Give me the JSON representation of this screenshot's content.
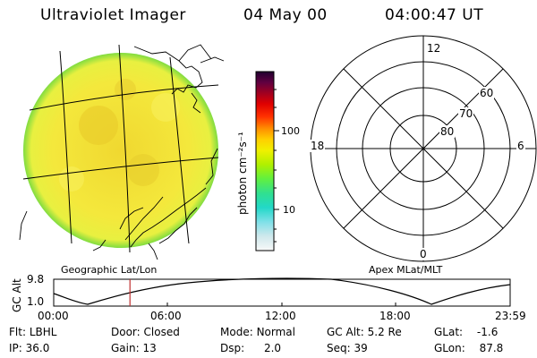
{
  "header": {
    "title": "Ultraviolet Imager",
    "date": "04 May 00",
    "time": "04:00:47 UT"
  },
  "left_panel": {
    "label": "Geographic Lat/Lon"
  },
  "right_panel": {
    "label": "Apex MLat/MLT",
    "mlt_labels": {
      "top": "12",
      "bottom": "0",
      "left": "18",
      "right": "6"
    },
    "lat_rings": [
      "60",
      "70",
      "80"
    ]
  },
  "colorbar": {
    "unit": "photon cm⁻²s⁻¹",
    "ticks": [
      {
        "label": "100",
        "value": 100
      },
      {
        "label": "10",
        "value": 10
      }
    ],
    "colors": [
      "#f8f8f8",
      "#cfe8ec",
      "#7fe0e8",
      "#22d8c8",
      "#30e090",
      "#60f040",
      "#b0f000",
      "#f0f000",
      "#ffd000",
      "#ff9000",
      "#ff3000",
      "#e00000",
      "#a00020",
      "#600040",
      "#200030"
    ]
  },
  "gc_plot": {
    "ylabel": "GC Alt",
    "ymax": "9.8",
    "ymin": "1.0",
    "x_ticks": [
      "00:00",
      "06:00",
      "12:00",
      "18:00",
      "23:59"
    ],
    "current_time_hours": 4.01
  },
  "info": {
    "flt": {
      "label": "Flt:",
      "value": "LBHL"
    },
    "ip": {
      "label": "IP:",
      "value": "36.0"
    },
    "door": {
      "label": "Door:",
      "value": "Closed"
    },
    "gain": {
      "label": "Gain:",
      "value": "13"
    },
    "mode": {
      "label": "Mode:",
      "value": "Normal"
    },
    "dsp": {
      "label": "Dsp:",
      "value": "2.0"
    },
    "gcalt": {
      "label": "GC Alt:",
      "value": "5.2 Re"
    },
    "seq": {
      "label": "Seq:",
      "value": "39"
    },
    "glat": {
      "label": "GLat:",
      "value": "-1.6"
    },
    "glon": {
      "label": "GLon:",
      "value": "87.8"
    }
  },
  "colors": {
    "disc_base": "#f3e93a",
    "disc_edge": "#7fdc40",
    "marker": "#c03030"
  }
}
